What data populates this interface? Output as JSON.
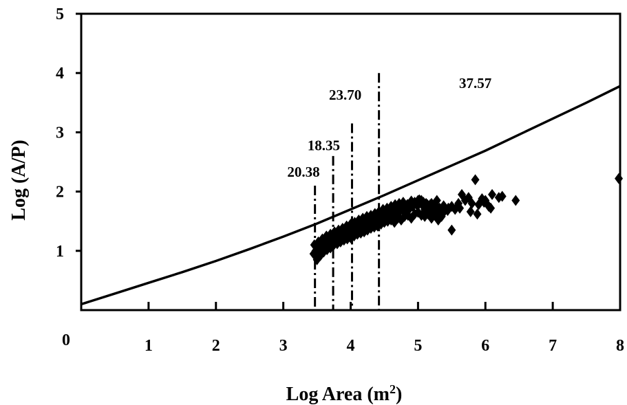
{
  "chart_data": {
    "type": "scatter",
    "title": "",
    "xlabel": "Log  Area (m",
    "xlabel_sup": "2",
    "xlabel_close": ")",
    "ylabel": "Log (A/P)",
    "xlim": [
      0,
      8
    ],
    "ylim": [
      0,
      5
    ],
    "x_ticks": [
      "0",
      "1",
      "2",
      "3",
      "4",
      "5",
      "6",
      "7",
      "8"
    ],
    "y_ticks": [
      "1",
      "2",
      "3",
      "4",
      "5"
    ],
    "grid": false,
    "legend": "none",
    "colors": {
      "line": "#000000",
      "points": "#000000",
      "background": "#ffffff"
    },
    "series": [
      {
        "kind": "line",
        "x": [
          0,
          0.5,
          1,
          1.5,
          2,
          2.5,
          3,
          3.5,
          4,
          4.5,
          5,
          5.5,
          6,
          6.5,
          7,
          7.5,
          8
        ],
        "y": [
          0.1,
          0.28,
          0.46,
          0.64,
          0.83,
          1.03,
          1.24,
          1.46,
          1.7,
          1.94,
          2.19,
          2.44,
          2.69,
          2.96,
          3.23,
          3.5,
          3.78
        ]
      },
      {
        "kind": "scatter",
        "marker": "diamond",
        "x": [
          3.45,
          3.48,
          3.5,
          3.52,
          3.55,
          3.57,
          3.6,
          3.62,
          3.65,
          3.67,
          3.7,
          3.72,
          3.75,
          3.78,
          3.8,
          3.82,
          3.85,
          3.88,
          3.9,
          3.92,
          3.95,
          3.98,
          4.0,
          4.02,
          4.05,
          4.08,
          4.1,
          4.12,
          4.15,
          4.18,
          4.2,
          4.22,
          4.25,
          4.28,
          4.3,
          4.33,
          4.35,
          4.38,
          4.4,
          4.42,
          4.45,
          4.48,
          4.5,
          4.52,
          4.55,
          4.58,
          4.6,
          4.62,
          4.65,
          4.68,
          4.7,
          4.72,
          4.75,
          4.78,
          4.8,
          4.82,
          4.85,
          4.88,
          4.9,
          4.92,
          4.95,
          4.98,
          5.0,
          5.02,
          5.05,
          5.08,
          5.1,
          5.12,
          5.15,
          5.18,
          5.2,
          5.22,
          5.25,
          5.28,
          5.3,
          5.32,
          5.35,
          5.4,
          5.45,
          5.5,
          5.55,
          5.6,
          5.65,
          5.7,
          5.75,
          5.8,
          5.85,
          5.9,
          5.95,
          6.0,
          6.05,
          6.1,
          6.25,
          6.45,
          7.98,
          3.5,
          3.55,
          3.6,
          3.65,
          3.7,
          3.75,
          3.8,
          3.85,
          3.9,
          3.95,
          4.0,
          4.05,
          4.1,
          4.15,
          4.2,
          4.25,
          4.3,
          4.35,
          4.4,
          4.45,
          4.5,
          4.55,
          4.6,
          4.65,
          4.7,
          4.75,
          4.8,
          4.85,
          4.9,
          4.95,
          5.0,
          5.05,
          5.1,
          5.15,
          5.2,
          5.25,
          5.3,
          5.35,
          3.46,
          3.52,
          3.58,
          3.64,
          3.7,
          3.76,
          3.82,
          3.88,
          3.94,
          4.0,
          4.06,
          4.12,
          4.18,
          4.24,
          4.3,
          4.36,
          4.42,
          4.48,
          4.54,
          4.6,
          4.66,
          4.72,
          4.78,
          4.84,
          4.9,
          4.96,
          5.02,
          5.08,
          5.14,
          5.2,
          5.26,
          5.32,
          5.38,
          5.44,
          5.5,
          5.62,
          5.78,
          5.88,
          5.98,
          6.08,
          6.2
        ],
        "y": [
          0.95,
          1.0,
          1.05,
          1.02,
          1.1,
          1.05,
          1.12,
          1.08,
          1.15,
          1.1,
          1.2,
          1.12,
          1.22,
          1.18,
          1.25,
          1.2,
          1.28,
          1.22,
          1.3,
          1.25,
          1.32,
          1.28,
          1.35,
          1.3,
          1.38,
          1.32,
          1.4,
          1.35,
          1.42,
          1.38,
          1.45,
          1.4,
          1.48,
          1.42,
          1.5,
          1.45,
          1.52,
          1.48,
          1.55,
          1.5,
          1.58,
          1.52,
          1.6,
          1.55,
          1.62,
          1.58,
          1.65,
          1.6,
          1.68,
          1.62,
          1.7,
          1.65,
          1.72,
          1.68,
          1.75,
          1.7,
          1.78,
          1.72,
          1.8,
          1.75,
          1.82,
          1.78,
          1.85,
          1.8,
          1.85,
          1.75,
          1.7,
          1.8,
          1.72,
          1.78,
          1.68,
          1.75,
          1.7,
          1.85,
          1.72,
          1.65,
          1.7,
          1.68,
          1.72,
          1.75,
          1.7,
          1.8,
          1.95,
          1.85,
          1.9,
          1.8,
          2.2,
          1.78,
          1.88,
          1.85,
          1.75,
          1.95,
          1.92,
          1.85,
          2.22,
          0.85,
          0.92,
          0.98,
          1.02,
          1.05,
          1.1,
          1.12,
          1.15,
          1.18,
          1.2,
          1.22,
          1.25,
          1.28,
          1.3,
          1.32,
          1.35,
          1.38,
          1.4,
          1.42,
          1.45,
          1.48,
          1.5,
          1.52,
          1.48,
          1.55,
          1.52,
          1.58,
          1.6,
          1.55,
          1.62,
          1.65,
          1.6,
          1.58,
          1.62,
          1.55,
          1.6,
          1.52,
          1.58,
          1.1,
          1.15,
          1.2,
          1.25,
          1.28,
          1.32,
          1.35,
          1.38,
          1.42,
          1.45,
          1.48,
          1.52,
          1.55,
          1.58,
          1.6,
          1.63,
          1.66,
          1.7,
          1.72,
          1.75,
          1.78,
          1.8,
          1.82,
          1.78,
          1.84,
          1.8,
          1.86,
          1.82,
          1.78,
          1.8,
          1.74,
          1.72,
          1.76,
          1.68,
          1.35,
          1.72,
          1.66,
          1.62,
          1.82,
          1.72,
          1.9
        ]
      }
    ],
    "vlines": [
      {
        "x": 3.47,
        "y_top": 2.1,
        "label": "20.38"
      },
      {
        "x": 3.74,
        "y_top": 2.6,
        "label": "18.35"
      },
      {
        "x": 4.02,
        "y_top": 3.15,
        "label": "23.70"
      },
      {
        "x": 4.42,
        "y_top": 4.0,
        "label": ""
      }
    ],
    "annotations": [
      {
        "text": "20.38",
        "x": 3.3,
        "y": 2.25
      },
      {
        "text": "18.35",
        "x": 3.6,
        "y": 2.7
      },
      {
        "text": "23.70",
        "x": 3.92,
        "y": 3.55
      },
      {
        "text": "37.57",
        "x": 5.85,
        "y": 3.75
      }
    ]
  }
}
